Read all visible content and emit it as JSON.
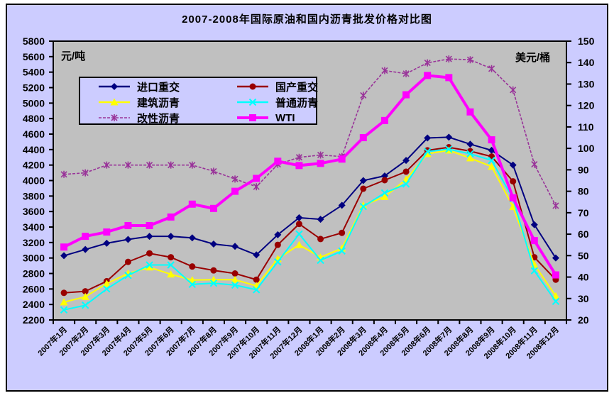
{
  "title": "2007-2008年国际原油和国内沥青批发价格对比图",
  "left_axis": {
    "unit": "元/吨",
    "min": 2200,
    "max": 5800,
    "step": 200
  },
  "right_axis": {
    "unit": "美元/桶",
    "min": 20,
    "max": 150,
    "step": 10
  },
  "colors": {
    "frame_background": "#ccccff",
    "plot_background": "#c0c0c0",
    "border": "#000000",
    "imported_heavy": "#000080",
    "domestic_heavy": "#990000",
    "construction_asphalt": "#ffff00",
    "ordinary_asphalt": "#00ffff",
    "modified_asphalt": "#993399",
    "wti": "#ff00ff"
  },
  "chart_data": {
    "type": "line",
    "grid": false,
    "legend_position": "inside-top-left",
    "categories": [
      "2007年1月",
      "2007年2月",
      "2007年3月",
      "2007年4月",
      "2007年5月",
      "2007年6月",
      "2007年7月",
      "2007年8月",
      "2007年9月",
      "2007年10月",
      "2007年11月",
      "2007年12月",
      "2008年1月",
      "2008年2月",
      "2008年3月",
      "2008年4月",
      "2008年5月",
      "2008年6月",
      "2008年7月",
      "2008年8月",
      "2008年9月",
      "2008年10月",
      "2008年11月",
      "2008年12月"
    ],
    "left_axis_label": "元/吨",
    "right_axis_label": "美元/桶",
    "left_ylim": [
      2200,
      5800
    ],
    "right_ylim": [
      20,
      150
    ],
    "series": [
      {
        "key": "imported-heavy",
        "name": "进口重交",
        "axis": "left",
        "marker": "diamond",
        "color": "#000080",
        "values": [
          3030,
          3110,
          3190,
          3240,
          3280,
          3280,
          3260,
          3180,
          3150,
          3040,
          3300,
          3520,
          3500,
          3680,
          4000,
          4060,
          4260,
          4550,
          4560,
          4470,
          4390,
          4200,
          3430,
          3000
        ]
      },
      {
        "key": "domestic-heavy",
        "name": "国产重交",
        "axis": "left",
        "marker": "circle",
        "color": "#990000",
        "values": [
          2550,
          2570,
          2700,
          2950,
          3060,
          3010,
          2890,
          2840,
          2800,
          2720,
          3170,
          3440,
          3245,
          3325,
          3895,
          4005,
          4115,
          4390,
          4430,
          4380,
          4310,
          3990,
          3010,
          2720
        ]
      },
      {
        "key": "construction-asphalt",
        "name": "建筑沥青",
        "axis": "left",
        "marker": "triangle",
        "color": "#ffff00",
        "values": [
          2430,
          2500,
          2670,
          2800,
          2880,
          2790,
          2715,
          2720,
          2720,
          2640,
          2990,
          3170,
          3010,
          3125,
          3680,
          3790,
          4015,
          4345,
          4390,
          4290,
          4180,
          3660,
          2915,
          2510
        ]
      },
      {
        "key": "ordinary-asphalt",
        "name": "普通沥青",
        "axis": "left",
        "marker": "x",
        "color": "#00ffff",
        "values": [
          2330,
          2390,
          2600,
          2775,
          2910,
          2910,
          2660,
          2675,
          2650,
          2590,
          2950,
          3310,
          2970,
          3090,
          3665,
          3840,
          3955,
          4375,
          4405,
          4345,
          4260,
          3765,
          2835,
          2440
        ]
      },
      {
        "key": "modified-asphalt",
        "name": "改性沥青",
        "axis": "left",
        "marker": "star",
        "color": "#993399",
        "values": [
          4080,
          4100,
          4200,
          4200,
          4200,
          4200,
          4200,
          4120,
          4020,
          3920,
          4210,
          4300,
          4330,
          4310,
          5100,
          5420,
          5380,
          5520,
          5570,
          5560,
          5445,
          5170,
          4210,
          3675
        ]
      },
      {
        "key": "wti",
        "name": "WTI",
        "axis": "right",
        "marker": "square",
        "color": "#ff00ff",
        "values": [
          54,
          59,
          61,
          64,
          64,
          68,
          74,
          72,
          80,
          86,
          94,
          92,
          93,
          95,
          105,
          113,
          125,
          134,
          133,
          117,
          104,
          77,
          57,
          41
        ]
      }
    ]
  }
}
